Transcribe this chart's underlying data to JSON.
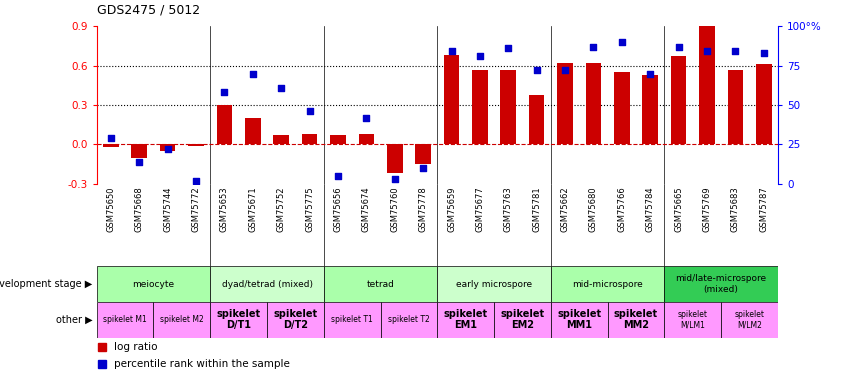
{
  "title": "GDS2475 / 5012",
  "samples": [
    "GSM75650",
    "GSM75668",
    "GSM75744",
    "GSM75772",
    "GSM75653",
    "GSM75671",
    "GSM75752",
    "GSM75775",
    "GSM75656",
    "GSM75674",
    "GSM75760",
    "GSM75778",
    "GSM75659",
    "GSM75677",
    "GSM75763",
    "GSM75781",
    "GSM75662",
    "GSM75680",
    "GSM75766",
    "GSM75784",
    "GSM75665",
    "GSM75769",
    "GSM75683",
    "GSM75787"
  ],
  "log_ratio": [
    -0.02,
    -0.1,
    -0.05,
    -0.01,
    0.3,
    0.2,
    0.07,
    0.08,
    0.07,
    0.08,
    -0.22,
    -0.15,
    0.68,
    0.57,
    0.57,
    0.38,
    0.62,
    0.62,
    0.55,
    0.53,
    0.67,
    0.9,
    0.57,
    0.61
  ],
  "percentile_rank": [
    29,
    14,
    22,
    2,
    58,
    70,
    61,
    46,
    5,
    42,
    3,
    10,
    84,
    81,
    86,
    72,
    72,
    87,
    90,
    70,
    87,
    84,
    84,
    83
  ],
  "bar_color": "#cc0000",
  "scatter_color": "#0000cc",
  "ylim_left": [
    -0.3,
    0.9
  ],
  "ylim_right": [
    0,
    100
  ],
  "yticks_left": [
    -0.3,
    0.0,
    0.3,
    0.6,
    0.9
  ],
  "yticks_right": [
    0,
    25,
    50,
    75,
    100
  ],
  "hlines_dotted": [
    0.3,
    0.6
  ],
  "group_boundaries": [
    3.5,
    7.5,
    11.5,
    15.5,
    19.5
  ],
  "dev_stage_groups": [
    {
      "label": "meiocyte",
      "start": 0,
      "end": 3,
      "color": "#aaffaa"
    },
    {
      "label": "dyad/tetrad (mixed)",
      "start": 4,
      "end": 7,
      "color": "#ccffcc"
    },
    {
      "label": "tetrad",
      "start": 8,
      "end": 11,
      "color": "#aaffaa"
    },
    {
      "label": "early microspore",
      "start": 12,
      "end": 15,
      "color": "#ccffcc"
    },
    {
      "label": "mid-microspore",
      "start": 16,
      "end": 19,
      "color": "#aaffaa"
    },
    {
      "label": "mid/late-microspore\n(mixed)",
      "start": 20,
      "end": 23,
      "color": "#33cc55"
    }
  ],
  "other_groups": [
    {
      "label": "spikelet M1",
      "start": 0,
      "end": 1,
      "color": "#ff99ff",
      "fontsize": 5.5,
      "bold": false
    },
    {
      "label": "spikelet M2",
      "start": 2,
      "end": 3,
      "color": "#ff99ff",
      "fontsize": 5.5,
      "bold": false
    },
    {
      "label": "spikelet\nD/T1",
      "start": 4,
      "end": 5,
      "color": "#ff99ff",
      "fontsize": 7,
      "bold": true
    },
    {
      "label": "spikelet\nD/T2",
      "start": 6,
      "end": 7,
      "color": "#ff99ff",
      "fontsize": 7,
      "bold": true
    },
    {
      "label": "spikelet T1",
      "start": 8,
      "end": 9,
      "color": "#ff99ff",
      "fontsize": 5.5,
      "bold": false
    },
    {
      "label": "spikelet T2",
      "start": 10,
      "end": 11,
      "color": "#ff99ff",
      "fontsize": 5.5,
      "bold": false
    },
    {
      "label": "spikelet\nEM1",
      "start": 12,
      "end": 13,
      "color": "#ff99ff",
      "fontsize": 7,
      "bold": true
    },
    {
      "label": "spikelet\nEM2",
      "start": 14,
      "end": 15,
      "color": "#ff99ff",
      "fontsize": 7,
      "bold": true
    },
    {
      "label": "spikelet\nMM1",
      "start": 16,
      "end": 17,
      "color": "#ff99ff",
      "fontsize": 7,
      "bold": true
    },
    {
      "label": "spikelet\nMM2",
      "start": 18,
      "end": 19,
      "color": "#ff99ff",
      "fontsize": 7,
      "bold": true
    },
    {
      "label": "spikelet\nM/LM1",
      "start": 20,
      "end": 21,
      "color": "#ff99ff",
      "fontsize": 5.5,
      "bold": false
    },
    {
      "label": "spikelet\nM/LM2",
      "start": 22,
      "end": 23,
      "color": "#ff99ff",
      "fontsize": 5.5,
      "bold": false
    }
  ],
  "legend_log_ratio": "log ratio",
  "legend_pct": "percentile rank within the sample",
  "dev_stage_label": "development stage",
  "other_label": "other"
}
